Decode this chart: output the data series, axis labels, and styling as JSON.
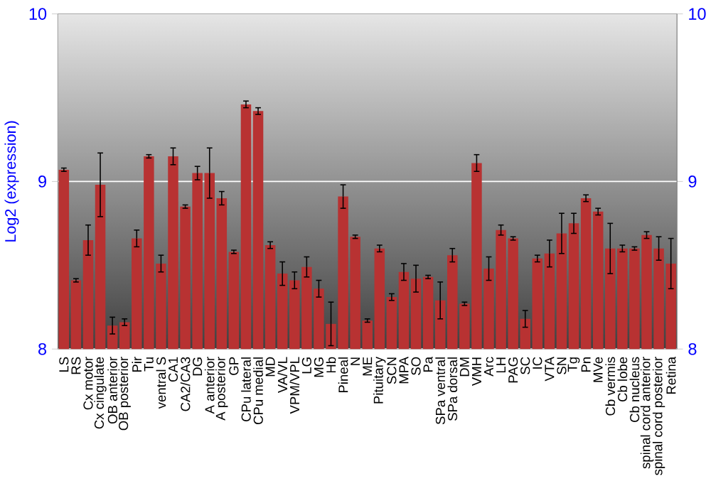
{
  "chart_data": {
    "type": "bar",
    "ylabel": "Log2 (expression)",
    "categories": [
      "LS",
      "RS",
      "Cx motor",
      "Cx cingulate",
      "OB anterior",
      "OB posterior",
      "Pir",
      "Tu",
      "ventral S",
      "CA1",
      "CA2/CA3",
      "DG",
      "A anterior",
      "A posterior",
      "GP",
      "CPu lateral",
      "CPu medial",
      "MD",
      "VA/VL",
      "VPM/VPL",
      "LG",
      "MG",
      "Hb",
      "Pineal",
      "N",
      "ME",
      "Pituitary",
      "SCN",
      "MPA",
      "SO",
      "Pa",
      "SPa ventral",
      "SPa dorsal",
      "DM",
      "VMH",
      "Arc",
      "LH",
      "PAG",
      "SC",
      "IC",
      "VTA",
      "SN",
      "Tg",
      "Pn",
      "MVe",
      "Cb vermis",
      "Cb lobe",
      "Cb nucleus",
      "spinal cord anterior",
      "spinal cord posterior",
      "Retina"
    ],
    "values": [
      9.07,
      8.41,
      8.65,
      8.98,
      8.14,
      8.16,
      8.66,
      9.15,
      8.51,
      9.15,
      8.85,
      9.05,
      9.05,
      8.9,
      8.58,
      9.46,
      9.42,
      8.62,
      8.45,
      8.41,
      8.49,
      8.36,
      8.15,
      8.91,
      8.67,
      8.17,
      8.6,
      8.31,
      8.46,
      8.42,
      8.43,
      8.29,
      8.56,
      8.27,
      9.11,
      8.48,
      8.71,
      8.66,
      8.18,
      8.54,
      8.57,
      8.69,
      8.75,
      8.9,
      8.82,
      8.6,
      8.6,
      8.6,
      8.68,
      8.6,
      8.51
    ],
    "errors": [
      0.01,
      0.01,
      0.09,
      0.19,
      0.05,
      0.02,
      0.05,
      0.01,
      0.05,
      0.05,
      0.01,
      0.04,
      0.15,
      0.04,
      0.01,
      0.02,
      0.02,
      0.02,
      0.07,
      0.05,
      0.06,
      0.05,
      0.13,
      0.07,
      0.01,
      0.01,
      0.02,
      0.02,
      0.05,
      0.08,
      0.01,
      0.11,
      0.04,
      0.01,
      0.05,
      0.07,
      0.03,
      0.01,
      0.05,
      0.02,
      0.08,
      0.12,
      0.06,
      0.02,
      0.02,
      0.15,
      0.02,
      0.01,
      0.02,
      0.07,
      0.15
    ],
    "color": "#b83232",
    "ylim": [
      8,
      10
    ],
    "yticks": [
      8,
      9,
      10
    ],
    "y2lim": [
      8,
      10
    ],
    "y2ticks": [
      8,
      9,
      10
    ],
    "grid": "y"
  }
}
